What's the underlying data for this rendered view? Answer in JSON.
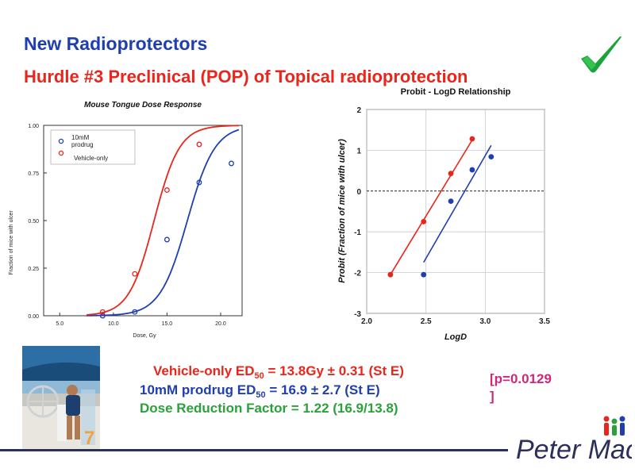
{
  "slide": {
    "title": "New Radioprotectors",
    "subtitle": "Hurdle #3  Preclinical (POP) of Topical radioprotection",
    "checkmark_icon": "green-checkmark-icon",
    "photo_badge": "7",
    "results": {
      "line1_a": "Vehicle-only ED",
      "line1_sub": "50",
      "line1_b": " = 13.8Gy ± 0.31 (St E)",
      "line2_a": "10mM prodrug ED",
      "line2_sub": "50",
      "line2_b": " = 16.9 ± 2.7 (St E)",
      "line3": "Dose Reduction Factor = 1.22 (16.9/13.8)"
    },
    "pvalue_line1": "[p=0.0129",
    "pvalue_line2": "]",
    "logo_text": "Peter Mac",
    "colors": {
      "title": "#1f3fb0",
      "subtitle": "#e8261c",
      "red": "#e8261c",
      "blue": "#1f3fb0",
      "green": "#2aa13a",
      "magenta": "#d0267a"
    }
  },
  "chart_data": [
    {
      "type": "scatter",
      "title": "Mouse Tongue Dose Response",
      "xlabel": "Dose, Gy",
      "ylabel": "Fraction of mice with ulcer",
      "xlim": [
        3.5,
        22
      ],
      "ylim": [
        0,
        1
      ],
      "x_ticks": [
        "5.0",
        "10.0",
        "15.0",
        "20.0"
      ],
      "y_ticks": [
        "0.00",
        "0.25",
        "0.50",
        "0.75",
        "1.00"
      ],
      "legend": [
        "10mM prodrug",
        "Vehicle-only"
      ],
      "legend_labels": {
        "blue_l1": "10mM",
        "blue_l2": "prodrug",
        "red": "Vehicle-only"
      },
      "legend_position": "top-left",
      "series": [
        {
          "name": "10mM prodrug",
          "color": "#1f3fb0",
          "x": [
            9,
            12,
            15,
            18,
            21
          ],
          "y": [
            0,
            0.02,
            0.4,
            0.7,
            0.8
          ],
          "fit": {
            "ed50": 16.9,
            "slope": 0.78
          }
        },
        {
          "name": "Vehicle-only",
          "color": "#e8261c",
          "x": [
            9,
            12,
            15,
            18
          ],
          "y": [
            0.02,
            0.22,
            0.66,
            0.9
          ],
          "fit": {
            "ed50": 13.8,
            "slope": 0.85
          }
        }
      ]
    },
    {
      "type": "scatter",
      "title": "Probit - LogD Relationship",
      "xlabel": "LogD",
      "ylabel": "Probit (Fraction of mice with ulcer)",
      "xlim": [
        2.0,
        3.5
      ],
      "ylim": [
        -3,
        2
      ],
      "x_ticks": [
        "2.0",
        "2.5",
        "3.0",
        "3.5"
      ],
      "y_ticks": [
        "-3",
        "-2",
        "-1",
        "0",
        "1",
        "2"
      ],
      "grid": true,
      "series": [
        {
          "name": "Vehicle-only",
          "color": "#e8261c",
          "x": [
            2.2,
            2.48,
            2.71,
            2.89
          ],
          "y": [
            -2.05,
            -0.75,
            0.43,
            1.28
          ],
          "line": [
            [
              2.2,
              -2.05
            ],
            [
              2.9,
              1.3
            ]
          ]
        },
        {
          "name": "10mM prodrug",
          "color": "#1f3fb0",
          "x": [
            2.48,
            2.71,
            2.89,
            3.05
          ],
          "y": [
            -2.05,
            -0.25,
            0.52,
            0.84
          ],
          "line": [
            [
              2.48,
              -1.75
            ],
            [
              3.05,
              1.12
            ]
          ]
        }
      ]
    }
  ]
}
